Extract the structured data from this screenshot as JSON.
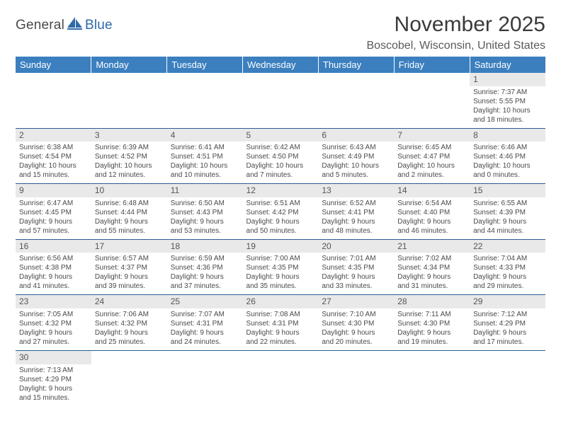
{
  "brand": {
    "part1": "General",
    "part2": "Blue"
  },
  "title": "November 2025",
  "location": "Boscobel, Wisconsin, United States",
  "colors": {
    "header_bg": "#3b7fbf",
    "header_text": "#ffffff",
    "daynum_bg": "#e9e9e9",
    "border": "#2b5f95",
    "text": "#4a4a4a",
    "brand_blue": "#2f6aa8"
  },
  "columns": [
    "Sunday",
    "Monday",
    "Tuesday",
    "Wednesday",
    "Thursday",
    "Friday",
    "Saturday"
  ],
  "weeks": [
    [
      null,
      null,
      null,
      null,
      null,
      null,
      {
        "n": "1",
        "sr": "Sunrise: 7:37 AM",
        "ss": "Sunset: 5:55 PM",
        "d1": "Daylight: 10 hours",
        "d2": "and 18 minutes."
      }
    ],
    [
      {
        "n": "2",
        "sr": "Sunrise: 6:38 AM",
        "ss": "Sunset: 4:54 PM",
        "d1": "Daylight: 10 hours",
        "d2": "and 15 minutes."
      },
      {
        "n": "3",
        "sr": "Sunrise: 6:39 AM",
        "ss": "Sunset: 4:52 PM",
        "d1": "Daylight: 10 hours",
        "d2": "and 12 minutes."
      },
      {
        "n": "4",
        "sr": "Sunrise: 6:41 AM",
        "ss": "Sunset: 4:51 PM",
        "d1": "Daylight: 10 hours",
        "d2": "and 10 minutes."
      },
      {
        "n": "5",
        "sr": "Sunrise: 6:42 AM",
        "ss": "Sunset: 4:50 PM",
        "d1": "Daylight: 10 hours",
        "d2": "and 7 minutes."
      },
      {
        "n": "6",
        "sr": "Sunrise: 6:43 AM",
        "ss": "Sunset: 4:49 PM",
        "d1": "Daylight: 10 hours",
        "d2": "and 5 minutes."
      },
      {
        "n": "7",
        "sr": "Sunrise: 6:45 AM",
        "ss": "Sunset: 4:47 PM",
        "d1": "Daylight: 10 hours",
        "d2": "and 2 minutes."
      },
      {
        "n": "8",
        "sr": "Sunrise: 6:46 AM",
        "ss": "Sunset: 4:46 PM",
        "d1": "Daylight: 10 hours",
        "d2": "and 0 minutes."
      }
    ],
    [
      {
        "n": "9",
        "sr": "Sunrise: 6:47 AM",
        "ss": "Sunset: 4:45 PM",
        "d1": "Daylight: 9 hours",
        "d2": "and 57 minutes."
      },
      {
        "n": "10",
        "sr": "Sunrise: 6:48 AM",
        "ss": "Sunset: 4:44 PM",
        "d1": "Daylight: 9 hours",
        "d2": "and 55 minutes."
      },
      {
        "n": "11",
        "sr": "Sunrise: 6:50 AM",
        "ss": "Sunset: 4:43 PM",
        "d1": "Daylight: 9 hours",
        "d2": "and 53 minutes."
      },
      {
        "n": "12",
        "sr": "Sunrise: 6:51 AM",
        "ss": "Sunset: 4:42 PM",
        "d1": "Daylight: 9 hours",
        "d2": "and 50 minutes."
      },
      {
        "n": "13",
        "sr": "Sunrise: 6:52 AM",
        "ss": "Sunset: 4:41 PM",
        "d1": "Daylight: 9 hours",
        "d2": "and 48 minutes."
      },
      {
        "n": "14",
        "sr": "Sunrise: 6:54 AM",
        "ss": "Sunset: 4:40 PM",
        "d1": "Daylight: 9 hours",
        "d2": "and 46 minutes."
      },
      {
        "n": "15",
        "sr": "Sunrise: 6:55 AM",
        "ss": "Sunset: 4:39 PM",
        "d1": "Daylight: 9 hours",
        "d2": "and 44 minutes."
      }
    ],
    [
      {
        "n": "16",
        "sr": "Sunrise: 6:56 AM",
        "ss": "Sunset: 4:38 PM",
        "d1": "Daylight: 9 hours",
        "d2": "and 41 minutes."
      },
      {
        "n": "17",
        "sr": "Sunrise: 6:57 AM",
        "ss": "Sunset: 4:37 PM",
        "d1": "Daylight: 9 hours",
        "d2": "and 39 minutes."
      },
      {
        "n": "18",
        "sr": "Sunrise: 6:59 AM",
        "ss": "Sunset: 4:36 PM",
        "d1": "Daylight: 9 hours",
        "d2": "and 37 minutes."
      },
      {
        "n": "19",
        "sr": "Sunrise: 7:00 AM",
        "ss": "Sunset: 4:35 PM",
        "d1": "Daylight: 9 hours",
        "d2": "and 35 minutes."
      },
      {
        "n": "20",
        "sr": "Sunrise: 7:01 AM",
        "ss": "Sunset: 4:35 PM",
        "d1": "Daylight: 9 hours",
        "d2": "and 33 minutes."
      },
      {
        "n": "21",
        "sr": "Sunrise: 7:02 AM",
        "ss": "Sunset: 4:34 PM",
        "d1": "Daylight: 9 hours",
        "d2": "and 31 minutes."
      },
      {
        "n": "22",
        "sr": "Sunrise: 7:04 AM",
        "ss": "Sunset: 4:33 PM",
        "d1": "Daylight: 9 hours",
        "d2": "and 29 minutes."
      }
    ],
    [
      {
        "n": "23",
        "sr": "Sunrise: 7:05 AM",
        "ss": "Sunset: 4:32 PM",
        "d1": "Daylight: 9 hours",
        "d2": "and 27 minutes."
      },
      {
        "n": "24",
        "sr": "Sunrise: 7:06 AM",
        "ss": "Sunset: 4:32 PM",
        "d1": "Daylight: 9 hours",
        "d2": "and 25 minutes."
      },
      {
        "n": "25",
        "sr": "Sunrise: 7:07 AM",
        "ss": "Sunset: 4:31 PM",
        "d1": "Daylight: 9 hours",
        "d2": "and 24 minutes."
      },
      {
        "n": "26",
        "sr": "Sunrise: 7:08 AM",
        "ss": "Sunset: 4:31 PM",
        "d1": "Daylight: 9 hours",
        "d2": "and 22 minutes."
      },
      {
        "n": "27",
        "sr": "Sunrise: 7:10 AM",
        "ss": "Sunset: 4:30 PM",
        "d1": "Daylight: 9 hours",
        "d2": "and 20 minutes."
      },
      {
        "n": "28",
        "sr": "Sunrise: 7:11 AM",
        "ss": "Sunset: 4:30 PM",
        "d1": "Daylight: 9 hours",
        "d2": "and 19 minutes."
      },
      {
        "n": "29",
        "sr": "Sunrise: 7:12 AM",
        "ss": "Sunset: 4:29 PM",
        "d1": "Daylight: 9 hours",
        "d2": "and 17 minutes."
      }
    ],
    [
      {
        "n": "30",
        "sr": "Sunrise: 7:13 AM",
        "ss": "Sunset: 4:29 PM",
        "d1": "Daylight: 9 hours",
        "d2": "and 15 minutes."
      },
      null,
      null,
      null,
      null,
      null,
      null
    ]
  ]
}
